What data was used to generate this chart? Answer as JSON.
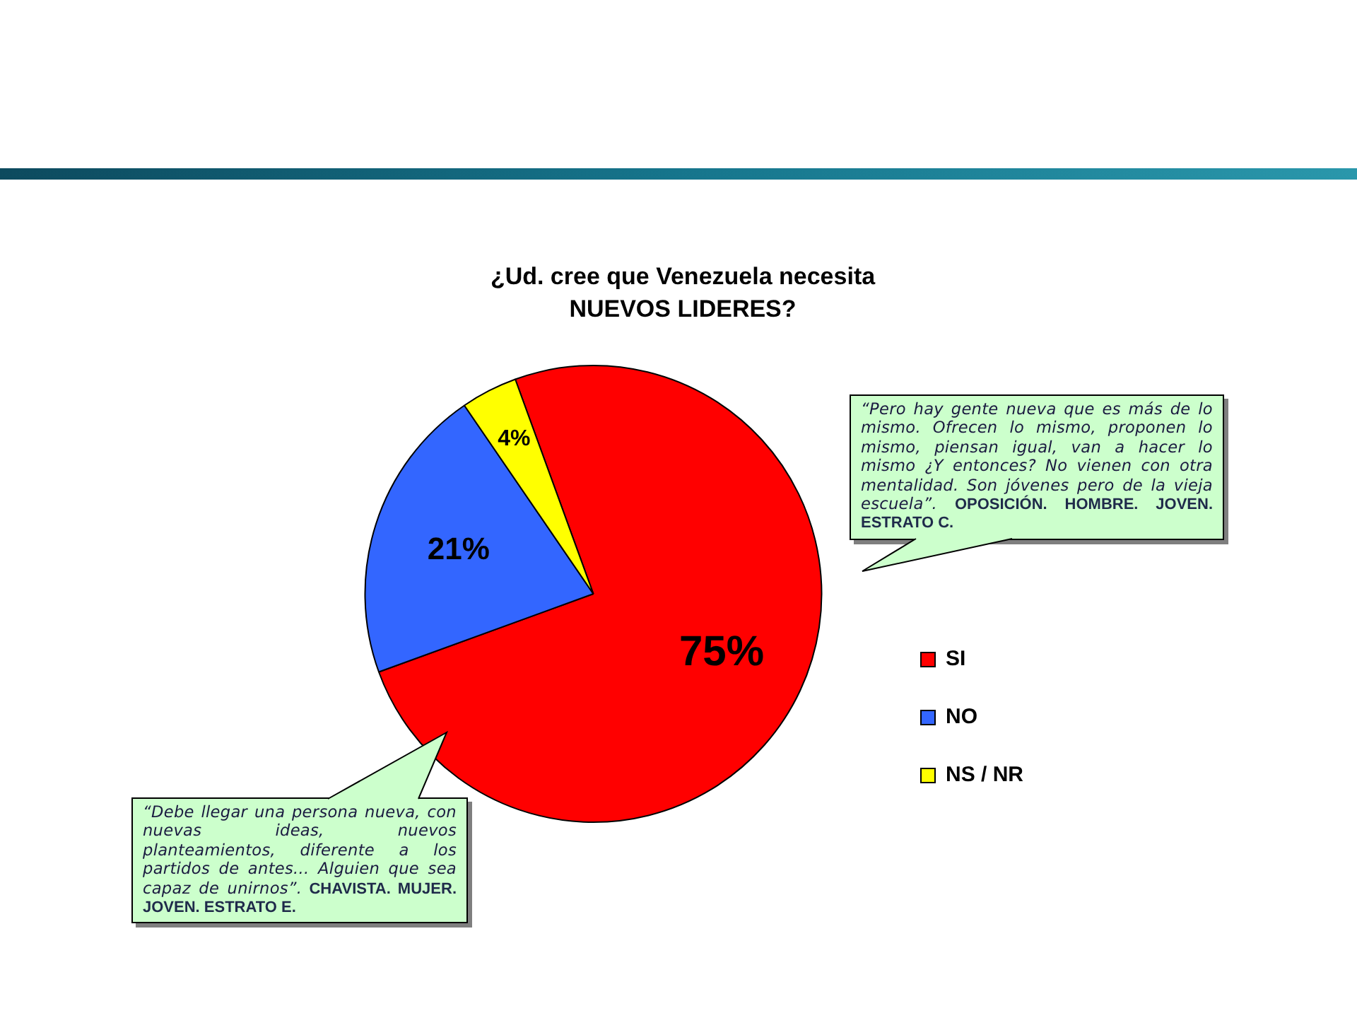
{
  "chart_data": {
    "type": "pie",
    "title": "¿Ud. cree que Venezuela necesita\nNUEVOS LIDERES?",
    "categories": [
      "SI",
      "NO",
      "NS / NR"
    ],
    "values": [
      75,
      21,
      4
    ],
    "colors": [
      "#ff0000",
      "#3366ff",
      "#ffff00"
    ],
    "value_labels": [
      "75%",
      "21%",
      "4%"
    ],
    "legend": "right",
    "annotations": [
      "“Pero hay gente nueva que es más de lo mismo. Ofrecen lo mismo, proponen lo mismo, piensan igual, van a hacer lo mismo ¿Y entonces? No vienen con otra mentalidad. Son jóvenes pero de la vieja escuela”. OPOSICIÓN. HOMBRE. JOVEN. ESTRATO C.",
      "“Debe llegar una persona nueva, con nuevas ideas, nuevos planteamientos, diferente a los partidos de antes... Alguien que sea capaz de unirnos”. CHAVISTA. MUJER. JOVEN. ESTRATO E."
    ]
  }
}
